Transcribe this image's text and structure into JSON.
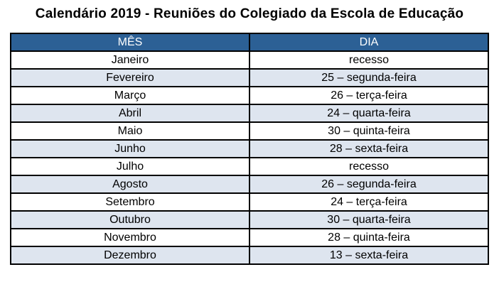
{
  "title": "Calendário 2019 - Reuniões do Colegiado da Escola de Educação",
  "colors": {
    "header_bg": "#2C6095",
    "header_text": "#FFFFFF",
    "row_alt_bg": "#DEE5EF",
    "row_plain_bg": "#FFFFFF",
    "border": "#000000",
    "title_text": "#000000"
  },
  "table": {
    "headers": [
      "MÊS",
      "DIA"
    ],
    "rows": [
      {
        "mes": "Janeiro",
        "dia": "recesso"
      },
      {
        "mes": "Fevereiro",
        "dia": "25 – segunda-feira"
      },
      {
        "mes": "Março",
        "dia": "26 – terça-feira"
      },
      {
        "mes": "Abril",
        "dia": "24 – quarta-feira"
      },
      {
        "mes": "Maio",
        "dia": "30 – quinta-feira"
      },
      {
        "mes": "Junho",
        "dia": "28 – sexta-feira"
      },
      {
        "mes": "Julho",
        "dia": "recesso"
      },
      {
        "mes": "Agosto",
        "dia": "26 – segunda-feira"
      },
      {
        "mes": "Setembro",
        "dia": "24 – terça-feira"
      },
      {
        "mes": "Outubro",
        "dia": "30 – quarta-feira"
      },
      {
        "mes": "Novembro",
        "dia": "28 – quinta-feira"
      },
      {
        "mes": "Dezembro",
        "dia": "13 – sexta-feira"
      }
    ]
  }
}
